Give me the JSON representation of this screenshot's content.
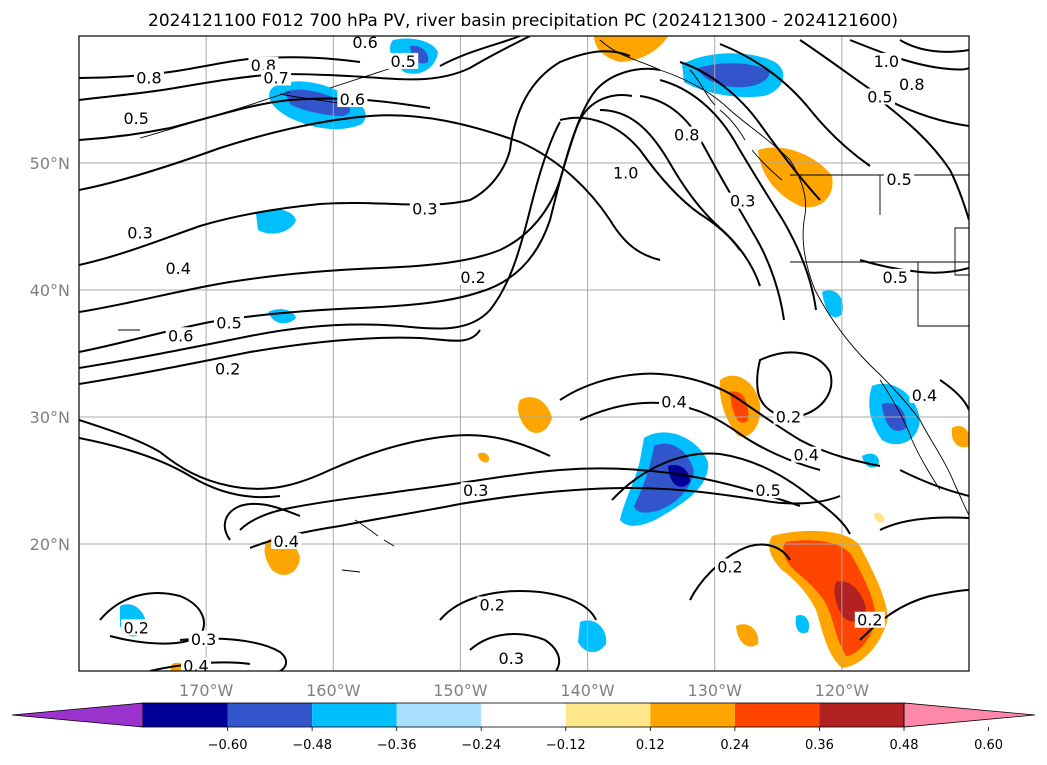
{
  "chart_data": {
    "type": "contour map",
    "title": "2024121100 F012 700 hPa PV, river basin precipitation PC (2024121300 - 2024121600)",
    "x_ticks": [
      {
        "lon": -170,
        "label": "170°W"
      },
      {
        "lon": -160,
        "label": "160°W"
      },
      {
        "lon": -150,
        "label": "150°W"
      },
      {
        "lon": -140,
        "label": "140°W"
      },
      {
        "lon": -130,
        "label": "130°W"
      },
      {
        "lon": -120,
        "label": "120°W"
      }
    ],
    "y_ticks": [
      {
        "lat": 50,
        "label": "50°N"
      },
      {
        "lat": 40,
        "label": "40°N"
      },
      {
        "lat": 30,
        "label": "30°N"
      },
      {
        "lat": 20,
        "label": "20°N"
      }
    ],
    "colorbar": {
      "extend": "both",
      "colors": [
        "#9933cc",
        "#000099",
        "#3355cc",
        "#00bfff",
        "#aadfff",
        "#ffffff",
        "#ffe68a",
        "#ffa500",
        "#ff4500",
        "#b22222",
        "#ff88aa"
      ],
      "tick_labels": [
        "−0.60",
        "−0.48",
        "−0.36",
        "−0.24",
        "−0.12",
        "0.12",
        "0.24",
        "0.36",
        "0.48",
        "0.60"
      ]
    },
    "contour_labels": [
      {
        "text": "0.8",
        "lon": -174.5,
        "lat": 56.5
      },
      {
        "text": "0.8",
        "lon": -165.5,
        "lat": 57.5
      },
      {
        "text": "0.7",
        "lon": -164.5,
        "lat": 56.5
      },
      {
        "text": "0.6",
        "lon": -157.5,
        "lat": 59.3
      },
      {
        "text": "0.5",
        "lon": -154.5,
        "lat": 57.8
      },
      {
        "text": "0.6",
        "lon": -158.5,
        "lat": 54.8
      },
      {
        "text": "0.5",
        "lon": -175.5,
        "lat": 53.3
      },
      {
        "text": "0.3",
        "lon": -175.2,
        "lat": 44.3
      },
      {
        "text": "0.3",
        "lon": -152.8,
        "lat": 46.2
      },
      {
        "text": "0.4",
        "lon": -172.2,
        "lat": 41.5
      },
      {
        "text": "0.2",
        "lon": -149.0,
        "lat": 40.8
      },
      {
        "text": "0.5",
        "lon": -168.2,
        "lat": 37.2
      },
      {
        "text": "0.6",
        "lon": -172.0,
        "lat": 36.2
      },
      {
        "text": "0.2",
        "lon": -168.3,
        "lat": 33.6
      },
      {
        "text": "1.0",
        "lon": -137.0,
        "lat": 49.0
      },
      {
        "text": "0.8",
        "lon": -132.2,
        "lat": 52.0
      },
      {
        "text": "0.3",
        "lon": -127.8,
        "lat": 46.8
      },
      {
        "text": "1.0",
        "lon": -116.5,
        "lat": 57.8
      },
      {
        "text": "0.8",
        "lon": -114.5,
        "lat": 56.0
      },
      {
        "text": "0.5",
        "lon": -117.0,
        "lat": 55.0
      },
      {
        "text": "0.5",
        "lon": -115.5,
        "lat": 48.5
      },
      {
        "text": "0.5",
        "lon": -115.8,
        "lat": 40.8
      },
      {
        "text": "0.4",
        "lon": -133.2,
        "lat": 31.0
      },
      {
        "text": "0.2",
        "lon": -124.2,
        "lat": 29.8
      },
      {
        "text": "0.4",
        "lon": -122.8,
        "lat": 26.8
      },
      {
        "text": "0.5",
        "lon": -125.8,
        "lat": 24.0
      },
      {
        "text": "0.3",
        "lon": -148.8,
        "lat": 24.0
      },
      {
        "text": "0.4",
        "lon": -163.7,
        "lat": 20.0
      },
      {
        "text": "0.2",
        "lon": -128.8,
        "lat": 18.0
      },
      {
        "text": "0.2",
        "lon": -147.5,
        "lat": 15.0
      },
      {
        "text": "0.3",
        "lon": -146.0,
        "lat": 10.8
      },
      {
        "text": "0.2",
        "lon": -175.5,
        "lat": 13.2
      },
      {
        "text": "0.3",
        "lon": -170.2,
        "lat": 12.3
      },
      {
        "text": "0.4",
        "lon": -170.8,
        "lat": 10.2
      },
      {
        "text": "0.2",
        "lon": -117.8,
        "lat": 13.8
      },
      {
        "text": "0.4",
        "lon": -113.5,
        "lat": 31.5
      }
    ]
  }
}
